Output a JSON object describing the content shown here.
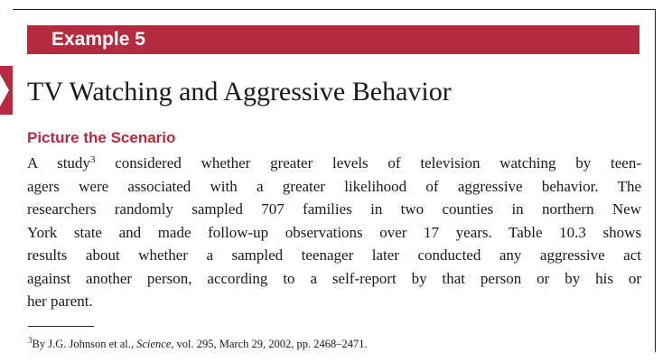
{
  "banner": {
    "label": "Example 5"
  },
  "title": "TV Watching and Aggressive Behavior",
  "section_heading": "Picture the Scenario",
  "paragraph": {
    "lines": [
      {
        "pre": "A study",
        "sup": "3",
        "post": " considered whether greater levels of television watching by teen-"
      },
      {
        "text": "agers were associated with a greater likelihood of aggressive behavior. The"
      },
      {
        "text": "researchers randomly sampled 707 families in two counties in northern New"
      },
      {
        "text": "York state and made follow-up observations over 17 years. Table 10.3 shows"
      },
      {
        "text": "results about whether a sampled teenager later conducted any aggressive act"
      },
      {
        "text": "against another person, according to a self-report by that person or by his or"
      },
      {
        "text": "her parent."
      }
    ]
  },
  "footnote": {
    "marker": "3",
    "pre": "By J.G. Johnson et al., ",
    "journal": "Science",
    "post": ", vol. 295, March 29, 2002, pp. 2468–2471."
  },
  "colors": {
    "accent": "#b52a3e",
    "text": "#1a1a1a"
  }
}
